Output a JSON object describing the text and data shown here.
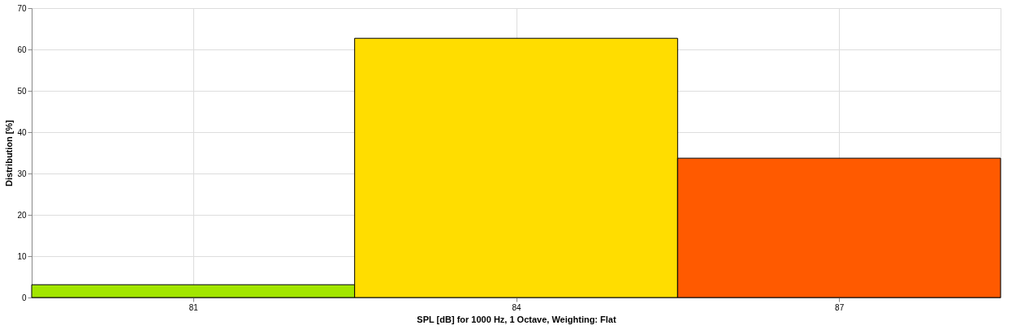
{
  "chart_data": {
    "type": "histogram",
    "xlabel": "SPL [dB] for 1000 Hz, 1 Octave, Weighting: Flat",
    "ylabel": "Distribution [%]",
    "bins": [
      79.5,
      82.5,
      85.5,
      88.5
    ],
    "values": [
      3.1,
      62.7,
      33.7
    ],
    "colors": [
      "#a2e600",
      "#ffdd00",
      "#ff5a00"
    ],
    "xlim": [
      79.5,
      88.5
    ],
    "xticks": [
      81,
      84,
      87
    ],
    "ylim": [
      0,
      70
    ],
    "yticks": [
      0,
      10,
      20,
      30,
      40,
      50,
      60,
      70
    ],
    "grid": true,
    "legend": false
  }
}
